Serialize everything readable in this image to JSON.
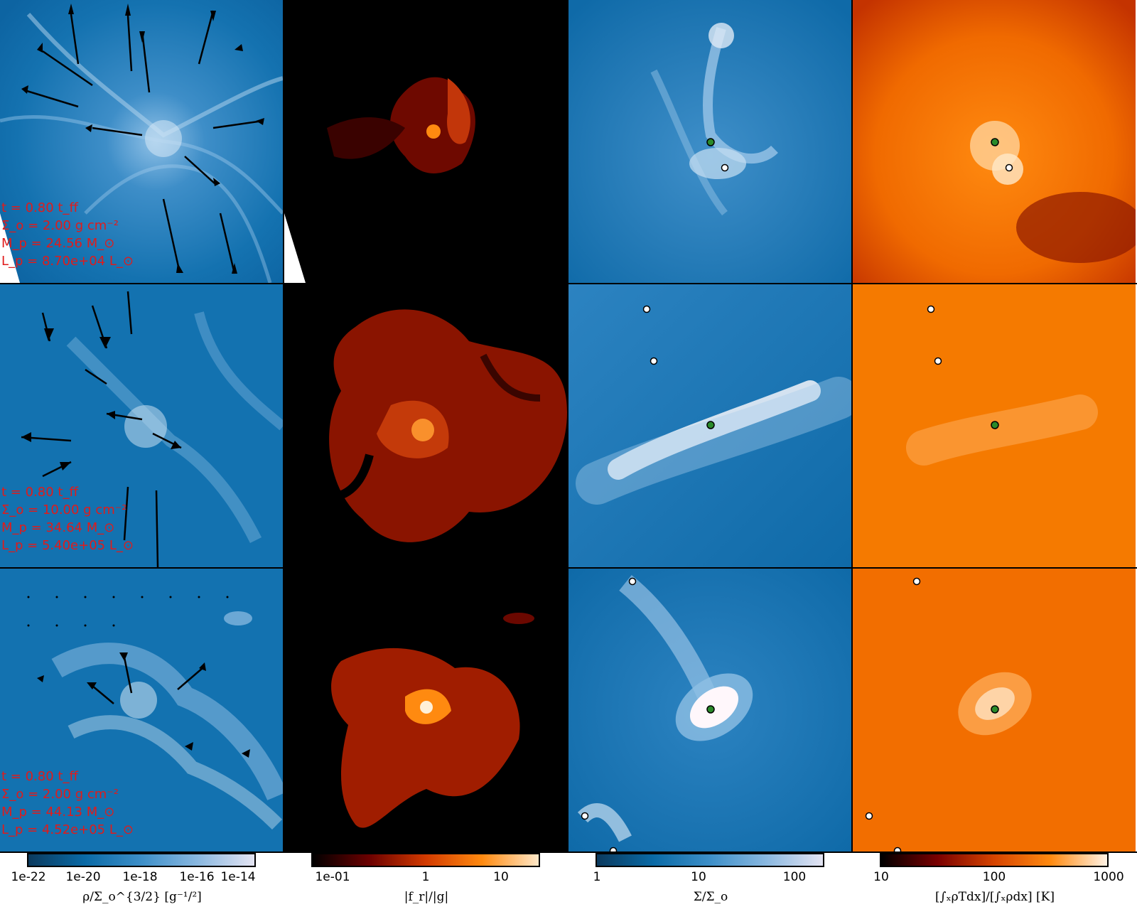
{
  "rows": [
    {
      "info": [
        "t = 0.80 t_ff",
        "Σ_o = 2.00 g cm⁻²",
        "M_p = 24.56 M_⊙",
        "L_p = 8.70e+04 L_⊙"
      ]
    },
    {
      "info": [
        "t = 0.80 t_ff",
        "Σ_o = 10.00 g cm⁻²",
        "M_p = 34.64 M_⊙",
        "L_p = 5.40e+05 L_⊙"
      ]
    },
    {
      "info": [
        "t = 0.80 t_ff",
        "Σ_o = 2.00 g cm⁻²",
        "M_p = 44.13 M_⊙",
        "L_p = 4.52e+05 L_⊙"
      ]
    }
  ],
  "colorbars": [
    {
      "name": "density",
      "label": "ρ/Σ_o^{3/2} [g⁻¹/²]",
      "ticks": [
        "1e-22",
        "1e-20",
        "1e-18",
        "1e-16",
        "1e-14"
      ],
      "colors": [
        "#0b3a5e",
        "#0a6aa6",
        "#3d8fc8",
        "#8ab8e0",
        "#e4e4f2"
      ]
    },
    {
      "name": "force-ratio",
      "label": "|f_r|/|g|",
      "ticks": [
        "1e-01",
        "1",
        "10"
      ],
      "colors": [
        "#000000",
        "#6b0000",
        "#d23a00",
        "#ff8a10",
        "#ffe8c8"
      ]
    },
    {
      "name": "column-density",
      "label": "Σ/Σ_o",
      "ticks": [
        "1",
        "10",
        "100"
      ],
      "colors": [
        "#0b3a5e",
        "#0a6aa6",
        "#3d8fc8",
        "#8ab8e0",
        "#e4e4f2"
      ]
    },
    {
      "name": "temperature",
      "label": "[∫ₓρTdx]/[∫ₓρdx] [K]",
      "ticks": [
        "10",
        "100",
        "1000"
      ],
      "colors": [
        "#000000",
        "#7a0000",
        "#d64400",
        "#ff8a10",
        "#fff3e6"
      ]
    }
  ]
}
